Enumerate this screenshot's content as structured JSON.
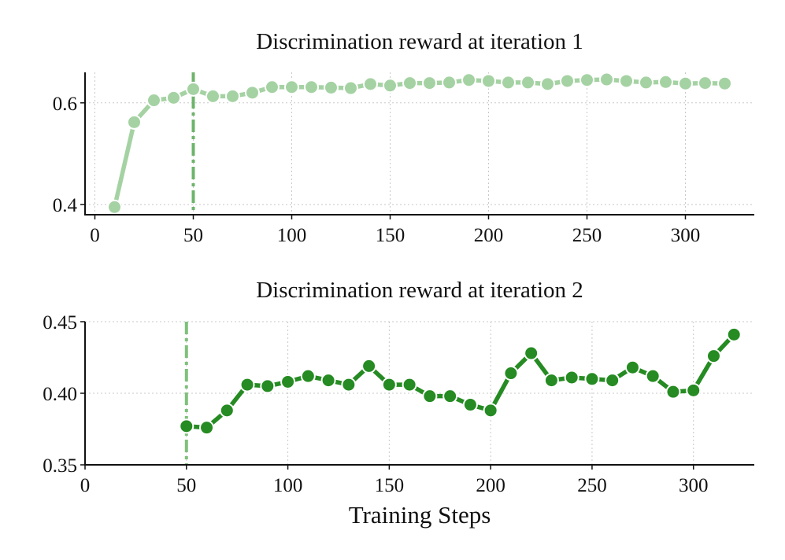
{
  "chart_data": [
    {
      "type": "line",
      "title": "Discrimination reward at iteration 1",
      "xlabel": "",
      "ylabel": "",
      "xlim": [
        -5,
        335
      ],
      "ylim": [
        0.38,
        0.66
      ],
      "xticks": [
        0,
        50,
        100,
        150,
        200,
        250,
        300
      ],
      "yticks": [
        0.4,
        0.6
      ],
      "ytick_labels": [
        "0.4",
        "0.6"
      ],
      "grid": true,
      "vline_x": 50,
      "series": [
        {
          "color": "#a5d2a3",
          "x": [
            10,
            20,
            30,
            40,
            50,
            60,
            70,
            80,
            90,
            100,
            110,
            120,
            130,
            140,
            150,
            160,
            170,
            180,
            190,
            200,
            210,
            220,
            230,
            240,
            250,
            260,
            270,
            280,
            290,
            300,
            310,
            320
          ],
          "y": [
            0.395,
            0.562,
            0.605,
            0.61,
            0.627,
            0.613,
            0.613,
            0.62,
            0.631,
            0.631,
            0.631,
            0.63,
            0.629,
            0.637,
            0.634,
            0.639,
            0.639,
            0.64,
            0.645,
            0.643,
            0.64,
            0.64,
            0.637,
            0.643,
            0.645,
            0.646,
            0.643,
            0.64,
            0.641,
            0.638,
            0.639,
            0.638
          ]
        }
      ]
    },
    {
      "type": "line",
      "title": "Discrimination reward at iteration 2",
      "xlabel": "Training Steps",
      "ylabel": "",
      "xlim": [
        0,
        330
      ],
      "ylim": [
        0.35,
        0.45
      ],
      "xticks": [
        0,
        50,
        100,
        150,
        200,
        250,
        300
      ],
      "yticks": [
        0.35,
        0.4,
        0.45
      ],
      "ytick_labels": [
        "0.35",
        "0.40",
        "0.45"
      ],
      "grid": true,
      "vline_x": 50,
      "series": [
        {
          "color": "#258b22",
          "x": [
            50,
            60,
            70,
            80,
            90,
            100,
            110,
            120,
            130,
            140,
            150,
            160,
            170,
            180,
            190,
            200,
            210,
            220,
            230,
            240,
            250,
            260,
            270,
            280,
            290,
            300,
            310,
            320
          ],
          "y": [
            0.377,
            0.376,
            0.388,
            0.406,
            0.405,
            0.408,
            0.412,
            0.409,
            0.406,
            0.419,
            0.406,
            0.406,
            0.398,
            0.398,
            0.392,
            0.388,
            0.414,
            0.428,
            0.409,
            0.411,
            0.41,
            0.409,
            0.418,
            0.412,
            0.401,
            0.402,
            0.426,
            0.441
          ]
        }
      ]
    }
  ]
}
